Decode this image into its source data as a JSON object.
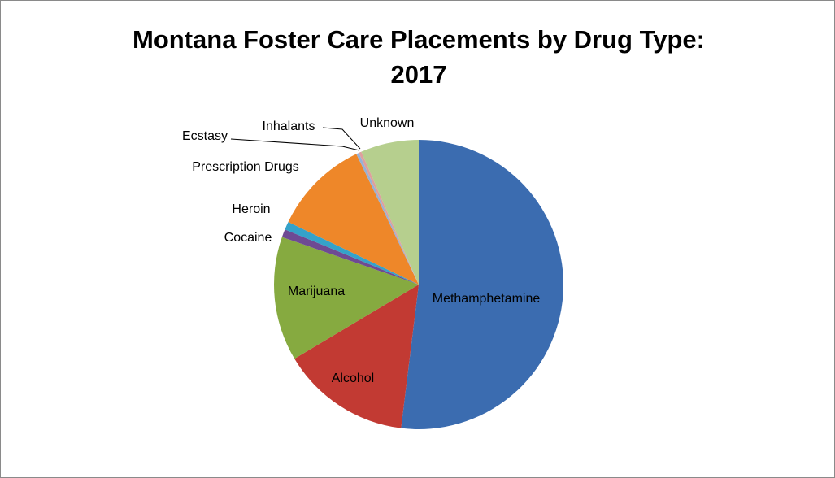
{
  "chart_data": {
    "type": "pie",
    "title": "Montana Foster Care Placements by Drug Type: 2017",
    "categories": [
      "Methamphetamine",
      "Alcohol",
      "Marijuana",
      "Cocaine",
      "Heroin",
      "Prescription Drugs",
      "Ecstasy",
      "Inhalants",
      "Unknown"
    ],
    "values": [
      52,
      14.5,
      13.9,
      0.9,
      0.9,
      10.8,
      0.3,
      0.3,
      6.5
    ],
    "colors": [
      "#3b6cb0",
      "#c23a33",
      "#86aa40",
      "#6e4a93",
      "#35a2c9",
      "#ee8729",
      "#97b1d6",
      "#dea09d",
      "#b6cf8e"
    ]
  }
}
